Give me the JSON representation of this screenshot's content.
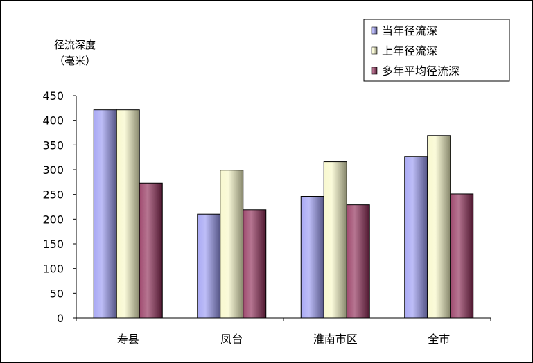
{
  "chart_data": {
    "type": "bar",
    "ylabel_line1": "径流深度",
    "ylabel_line2": "（毫米）",
    "categories": [
      "寿县",
      "凤台",
      "淮南市区",
      "全市"
    ],
    "series": [
      {
        "name": "当年径流深",
        "values": [
          421,
          210,
          246,
          327
        ],
        "color": "#9a9af2"
      },
      {
        "name": "上年径流深",
        "values": [
          421,
          299,
          316,
          369
        ],
        "color": "#f7f7c6"
      },
      {
        "name": "多年平均径流深",
        "values": [
          273,
          219,
          229,
          251
        ],
        "color": "#8e2a55"
      }
    ],
    "ylim": [
      0,
      450
    ],
    "yticks": [
      0,
      50,
      100,
      150,
      200,
      250,
      300,
      350,
      400,
      450
    ],
    "legend_position": "top-right",
    "grid": false
  }
}
